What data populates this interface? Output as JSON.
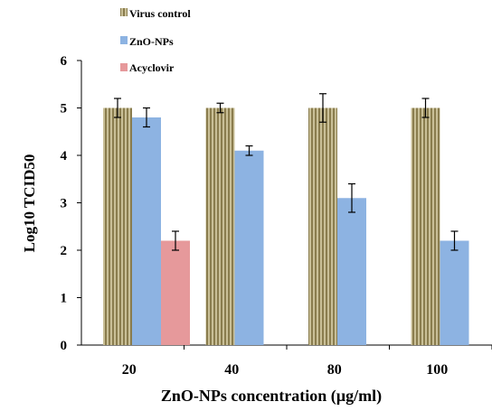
{
  "chart_data": {
    "type": "bar",
    "xlabel": "ZnO-NPs concentration (µg/ml)",
    "ylabel": "Log10 TCID50",
    "categories": [
      "20",
      "40",
      "80",
      "100"
    ],
    "ylim": [
      0,
      6
    ],
    "yticks": [
      "0",
      "1",
      "2",
      "3",
      "4",
      "5",
      "6"
    ],
    "grid": false,
    "legend_position": "top-left",
    "series": [
      {
        "name": "Virus control",
        "color": "#b8ad83",
        "pattern": "vertical-stripes",
        "values": [
          5.0,
          5.0,
          5.0,
          5.0
        ],
        "errors": [
          0.2,
          0.1,
          0.3,
          0.2
        ]
      },
      {
        "name": "ZnO-NPs",
        "color": "#8db3e2",
        "pattern": "solid",
        "values": [
          4.8,
          4.1,
          3.1,
          2.2
        ],
        "errors": [
          0.2,
          0.1,
          0.3,
          0.2
        ]
      },
      {
        "name": "Acyclovir",
        "color": "#e6999b",
        "pattern": "solid",
        "values": [
          2.2,
          null,
          null,
          null
        ],
        "errors": [
          0.2,
          null,
          null,
          null
        ]
      }
    ]
  }
}
